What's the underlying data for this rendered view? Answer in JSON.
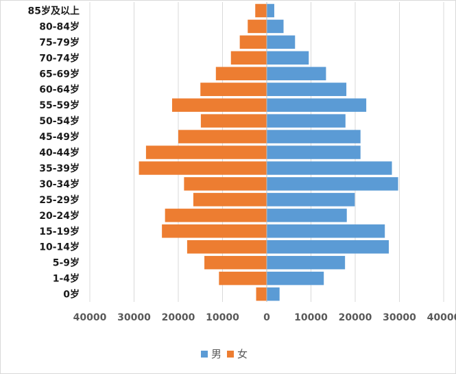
{
  "chart_data": {
    "type": "bar",
    "orientation": "horizontal-population-pyramid",
    "categories": [
      "85岁及以上",
      "80-84岁",
      "75-79岁",
      "70-74岁",
      "65-69岁",
      "60-64岁",
      "55-59岁",
      "50-54岁",
      "45-49岁",
      "40-44岁",
      "35-39岁",
      "30-34岁",
      "25-29岁",
      "20-24岁",
      "15-19岁",
      "10-14岁",
      "5-9岁",
      "1-4岁",
      "0岁"
    ],
    "series": [
      {
        "name": "男",
        "color": "#5b9bd5",
        "values": [
          1700,
          3800,
          6400,
          9500,
          13400,
          18000,
          22500,
          17800,
          21200,
          21200,
          28300,
          29700,
          19900,
          18100,
          26700,
          27600,
          17700,
          12900,
          2900
        ]
      },
      {
        "name": "女",
        "color": "#ed7d31",
        "values": [
          2600,
          4300,
          6100,
          8100,
          11500,
          15000,
          21400,
          14900,
          20000,
          27300,
          28900,
          18700,
          16600,
          23000,
          23700,
          18000,
          14100,
          10800,
          2400
        ]
      }
    ],
    "xlim": [
      -40000,
      40000
    ],
    "xticks": [
      -40000,
      -30000,
      -20000,
      -10000,
      0,
      10000,
      20000,
      30000,
      40000
    ],
    "xtick_labels": [
      "40000",
      "30000",
      "20000",
      "10000",
      "0",
      "10000",
      "20000",
      "30000",
      "40000"
    ],
    "legend_position": "bottom",
    "grid": true
  }
}
